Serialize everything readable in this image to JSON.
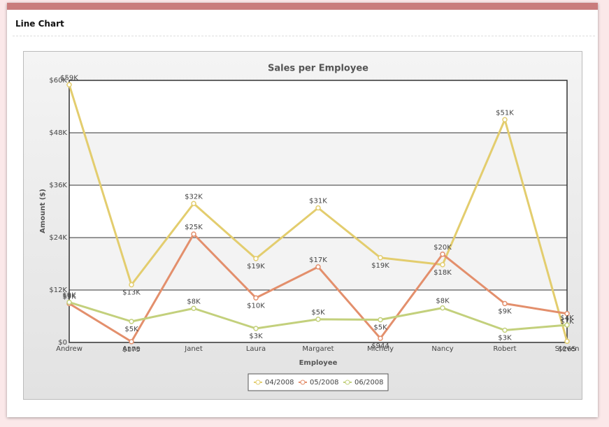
{
  "header": {
    "title": "Line Chart"
  },
  "chart_data": {
    "type": "line",
    "title": "Sales per Employee",
    "x_label": "Employee",
    "y_label": "Amount ($)",
    "categories": [
      "Andrew",
      "Anne",
      "Janet",
      "Laura",
      "Margaret",
      "Michely",
      "Nancy",
      "Robert",
      "Steven"
    ],
    "series": [
      {
        "name": "04/2008",
        "color": "#e3cd6e",
        "values": [
          59000,
          13200,
          31800,
          19200,
          30800,
          19400,
          17800,
          51000,
          265
        ],
        "value_labels": [
          "$59K",
          "$13K",
          "$32K",
          "$19K",
          "$31K",
          "$19K",
          "$18K",
          "$51K",
          "$265"
        ]
      },
      {
        "name": "05/2008",
        "color": "#e38f6c",
        "values": [
          8900,
          175,
          24800,
          10200,
          17300,
          944,
          20200,
          8900,
          6600
        ],
        "value_labels": [
          "$9K",
          "$175",
          "$25K",
          "$10K",
          "$17K",
          "$944",
          "$20K",
          "$9K",
          "$7K"
        ]
      },
      {
        "name": "06/2008",
        "color": "#c3d07c",
        "values": [
          9200,
          4800,
          7800,
          3200,
          5300,
          5200,
          7900,
          2800,
          4000
        ],
        "value_labels": [
          "$9K",
          "$5K",
          "$8K",
          "$3K",
          "$5K",
          "$5K",
          "$8K",
          "$3K",
          "$4K"
        ]
      }
    ],
    "ylim": [
      0,
      60000
    ],
    "yticks": [
      {
        "value": 0,
        "label": "$0"
      },
      {
        "value": 12000,
        "label": "$12K"
      },
      {
        "value": 24000,
        "label": "$24K"
      },
      {
        "value": 36000,
        "label": "$36K"
      },
      {
        "value": 48000,
        "label": "$48K"
      },
      {
        "value": 60000,
        "label": "$60K"
      }
    ],
    "grid": true,
    "legend": "bottom"
  }
}
